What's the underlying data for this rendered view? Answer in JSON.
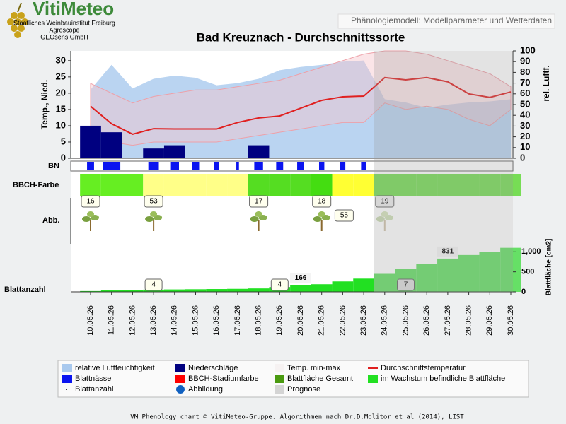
{
  "header": {
    "logo": "VitiMeteo",
    "org_lines": [
      "Staatliches Weinbauinstitut Freiburg",
      "Agroscope",
      "GEOsens GmbH"
    ],
    "tab": "Phänologiemodell: Modellparameter und Wetterdaten"
  },
  "chart_data": {
    "type": "phenology",
    "title": "Bad Kreuznach - Durchschnittssorte",
    "ylabel": "Temp., Nied.",
    "y2label": "rel. Luftf.",
    "leaf_axis_label": "Blattfläche [cm2]",
    "row_labels": {
      "bn": "BN",
      "bbch": "BBCH-Farbe",
      "image": "Abb.",
      "leaf_count": "Blattanzahl"
    },
    "categories": [
      "10.05.26",
      "11.05.26",
      "12.05.26",
      "13.05.26",
      "14.05.26",
      "15.05.26",
      "16.05.26",
      "17.05.26",
      "18.05.26",
      "19.05.26",
      "20.05.26",
      "21.05.26",
      "22.05.26",
      "23.05.26",
      "24.05.26",
      "25.05.26",
      "26.05.26",
      "27.05.26",
      "28.05.26",
      "29.05.26",
      "30.05.26"
    ],
    "forecast_from": "24.05.26",
    "ylim": [
      0,
      33
    ],
    "yticks": [
      0,
      5,
      10,
      15,
      20,
      25,
      30
    ],
    "y2lim": [
      0,
      100
    ],
    "y2ticks": [
      0,
      10,
      20,
      30,
      40,
      50,
      60,
      70,
      80,
      90,
      100
    ],
    "leaf_ylim": [
      0,
      1200
    ],
    "leaf_ticks": [
      0,
      500,
      {
        "value": 1000,
        "label": "1,000"
      }
    ],
    "humidity": {
      "color": "#a9c9ee",
      "axis": "y2",
      "values": [
        64,
        87,
        65,
        74,
        77,
        75,
        68,
        70,
        74,
        82,
        85,
        87,
        90,
        91,
        55,
        52,
        47,
        50,
        52,
        53,
        55
      ]
    },
    "temp_max": {
      "color": "#f6c6cc",
      "values": [
        23,
        20,
        17,
        19,
        20,
        21,
        21,
        22,
        23,
        24,
        26,
        28,
        30,
        32,
        33,
        33,
        32,
        30,
        28,
        26,
        22
      ]
    },
    "temp_min": {
      "color": "#f6c6cc",
      "values": [
        10,
        5,
        4,
        5,
        5,
        5,
        5,
        6,
        7,
        8,
        9,
        10,
        11,
        11,
        17,
        15,
        16,
        15,
        12,
        10,
        15
      ]
    },
    "temp_mean": {
      "color": "#e02020",
      "values": [
        16,
        10.6,
        7.4,
        9.1,
        9,
        9,
        9,
        11,
        12.4,
        13,
        15.4,
        17.8,
        18.9,
        19.1,
        24.8,
        24.1,
        24.8,
        23.5,
        19.8,
        18.7,
        20.4
      ]
    },
    "precipitation": {
      "color": "#000080",
      "values": [
        10,
        8,
        0,
        3,
        4,
        0,
        0,
        0,
        4,
        0,
        0,
        0,
        0,
        0,
        0,
        0,
        0,
        0,
        0,
        0,
        0
      ]
    },
    "leaf_wetness": {
      "color": "#0a14f0",
      "forecast_color": "#b0b0b0",
      "values": [
        8,
        20,
        0,
        12,
        10,
        8,
        6,
        3,
        10,
        8,
        8,
        6,
        6,
        6,
        0,
        0,
        0,
        0,
        0,
        0,
        0
      ]
    },
    "bbch_color": {
      "values": [
        "#66ee22",
        "#66ee22",
        "#66ee22",
        "#ffff88",
        "#ffff88",
        "#ffff88",
        "#ffff88",
        "#ffff88",
        "#55dd22",
        "#55dd22",
        "#55dd22",
        "#44dd11",
        "#ffff33",
        "#ffff33",
        "#77dd55",
        "#77dd55",
        "#77dd55",
        "#77dd55",
        "#77dd55",
        "#77dd55",
        "#77dd55"
      ]
    },
    "bbch_stage": {
      "values": [
        16,
        null,
        null,
        53,
        null,
        null,
        null,
        null,
        17,
        null,
        null,
        18,
        55,
        null,
        19,
        null,
        null,
        null,
        null,
        null,
        null
      ]
    },
    "leaf_area": {
      "color": "#22e022",
      "forecast_color": "#66e066",
      "values": [
        20,
        35,
        45,
        55,
        60,
        65,
        70,
        75,
        85,
        120,
        166,
        190,
        260,
        330,
        450,
        580,
        700,
        831,
        920,
        1000,
        1100
      ],
      "value_labels": [
        null,
        null,
        null,
        null,
        null,
        null,
        null,
        null,
        null,
        null,
        "166",
        null,
        null,
        null,
        null,
        null,
        null,
        "831",
        null,
        null,
        null
      ]
    },
    "leaf_count": {
      "values": [
        null,
        null,
        null,
        4,
        null,
        null,
        null,
        null,
        null,
        4,
        null,
        null,
        null,
        null,
        null,
        7,
        null,
        null,
        null,
        null,
        null
      ]
    },
    "legend": [
      {
        "name": "relative Luftfeuchtigkeit",
        "color": "#a9c9ee",
        "marker": "rect"
      },
      {
        "name": "Blattnässe",
        "color": "#0a14f0",
        "marker": "rect"
      },
      {
        "name": "Blattanzahl",
        "color": "#000000",
        "marker": "dot"
      },
      {
        "name": "Niederschläge",
        "color": "#000080",
        "marker": "rect"
      },
      {
        "name": "BBCH-Stadiumfarbe",
        "color": "#ff0000",
        "marker": "rect"
      },
      {
        "name": "Abbildung",
        "color": "#1060c0",
        "marker": "circle"
      },
      {
        "name": "Temp. min-max",
        "color": "#f6f2f2",
        "marker": "rect"
      },
      {
        "name": "Blattfläche Gesamt",
        "color": "#4a9a10",
        "marker": "rect"
      },
      {
        "name": "Prognose",
        "color": "#d4d4d4",
        "marker": "rect"
      },
      {
        "name": "Durchschnittstemperatur",
        "color": "#e02020",
        "marker": "line"
      },
      {
        "name": "im Wachstum befindliche Blattfläche",
        "color": "#22e022",
        "marker": "rect"
      }
    ]
  },
  "footer": "VM Phenology chart © VitiMeteo-Gruppe. Algorithmen nach Dr.D.Molitor et al (2014), LIST"
}
